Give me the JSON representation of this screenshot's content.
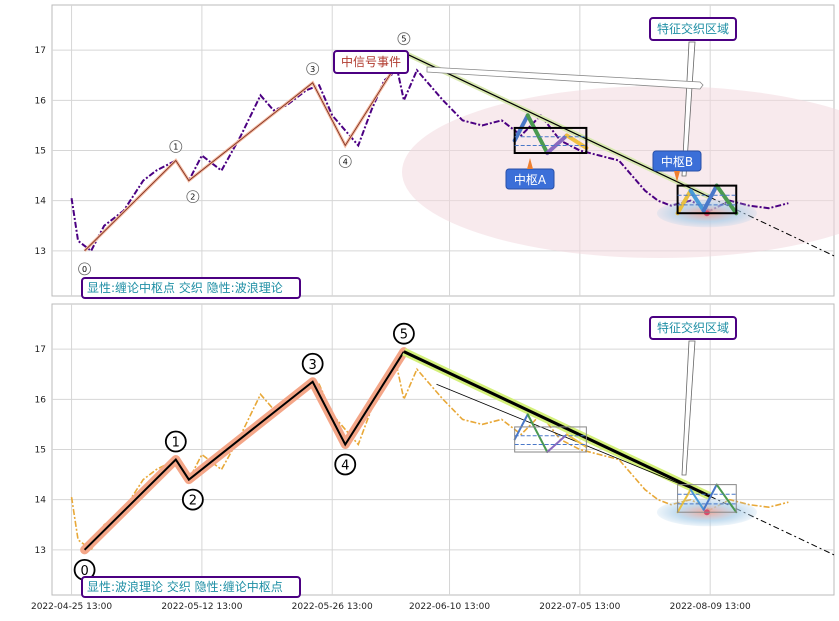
{
  "x_ticks": [
    "2022-04-25 13:00",
    "2022-05-12 13:00",
    "2022-05-26 13:00",
    "2022-06-10 13:00",
    "2022-07-05 13:00",
    "2022-08-09 13:00"
  ],
  "y_ticks": [
    "13",
    "14",
    "15",
    "16",
    "17"
  ],
  "colors": {
    "price_top": "#4b0082",
    "price_bottom": "#e8a838",
    "trend_line": "#000000",
    "wave_fill": "#f4a688",
    "zone_fill": "#f2d9df",
    "center_box_label_bg": "#3b6fd8",
    "annotation_border": "#4b0082",
    "annotation_text_teal": "#1f8fa5",
    "annotation_text_red": "#b03a2e"
  },
  "panels": [
    {
      "name": "top",
      "legend_label": "显性:缠论中枢点 交织 隐性:波浪理论",
      "feature_zone_label": "特征交织区域",
      "mid_signal_label": "中信号事件",
      "center_a_label": "中枢A",
      "center_b_label": "中枢B",
      "wave_labels": [
        "0",
        "1",
        "2",
        "3",
        "4",
        "5"
      ]
    },
    {
      "name": "bottom",
      "legend_label": "显性:波浪理论 交织 隐性:缠论中枢点",
      "feature_zone_label": "特征交织区域",
      "wave_labels": [
        "0",
        "1",
        "2",
        "3",
        "4",
        "5"
      ]
    }
  ],
  "chart_data": [
    {
      "type": "line",
      "title": "",
      "xlabel": "",
      "ylabel": "",
      "ylim": [
        12.1,
        17.9
      ],
      "x": [
        "2022-04-25 13:00",
        "2022-05-12 13:00",
        "2022-05-26 13:00",
        "2022-06-10 13:00",
        "2022-07-05 13:00",
        "2022-08-09 13:00"
      ],
      "series": [
        {
          "values_xy": [
            [
              0,
              14.05
            ],
            [
              1,
              13.2
            ],
            [
              3,
              13.0
            ],
            [
              5,
              13.5
            ],
            [
              8,
              13.8
            ],
            [
              11,
              14.4
            ],
            [
              13,
              14.6
            ],
            [
              16,
              14.8
            ],
            [
              18,
              14.4
            ],
            [
              20,
              14.9
            ],
            [
              23,
              14.6
            ],
            [
              26,
              15.3
            ],
            [
              29,
              16.1
            ],
            [
              31,
              15.8
            ],
            [
              33,
              15.9
            ],
            [
              36,
              16.2
            ],
            [
              38,
              16.3
            ],
            [
              40,
              15.7
            ],
            [
              42,
              15.4
            ],
            [
              44,
              15.1
            ],
            [
              46,
              15.8
            ],
            [
              48,
              16.4
            ],
            [
              50,
              16.6
            ],
            [
              51,
              16.0
            ],
            [
              53,
              16.6
            ],
            [
              55,
              16.3
            ],
            [
              57,
              16.0
            ],
            [
              60,
              15.6
            ],
            [
              63,
              15.5
            ],
            [
              66,
              15.6
            ],
            [
              69,
              15.3
            ],
            [
              72,
              15.7
            ],
            [
              75,
              15.2
            ],
            [
              78,
              15.0
            ],
            [
              81,
              14.9
            ],
            [
              84,
              14.8
            ],
            [
              86,
              14.5
            ],
            [
              88,
              14.2
            ],
            [
              90,
              14.0
            ],
            [
              92,
              13.9
            ],
            [
              95,
              14.0
            ],
            [
              98,
              13.8
            ],
            [
              101,
              14.0
            ],
            [
              104,
              13.9
            ],
            [
              107,
              13.85
            ],
            [
              110,
              13.95
            ]
          ]
        }
      ],
      "waves": {
        "points": [
          [
            2,
            13.0
          ],
          [
            16,
            14.8
          ],
          [
            18,
            14.4
          ],
          [
            37,
            16.35
          ],
          [
            42,
            15.1
          ],
          [
            51,
            16.95
          ]
        ],
        "labels": [
          "0",
          "1",
          "2",
          "3",
          "4",
          "5"
        ]
      },
      "centers": [
        {
          "label": "中枢A",
          "x_range": [
            68,
            79
          ],
          "y_range": [
            14.95,
            15.45
          ]
        },
        {
          "label": "中枢B",
          "x_range": [
            93,
            102
          ],
          "y_range": [
            13.75,
            14.3
          ]
        }
      ],
      "trend_line": {
        "from": [
          51,
          16.95
        ],
        "to": [
          117,
          12.9
        ]
      },
      "legend": "bottom-left"
    },
    {
      "type": "line",
      "title": "",
      "xlabel": "",
      "ylabel": "",
      "ylim": [
        12.1,
        17.9
      ],
      "x": [
        "2022-04-25 13:00",
        "2022-05-12 13:00",
        "2022-05-26 13:00",
        "2022-06-10 13:00",
        "2022-07-05 13:00",
        "2022-08-09 13:00"
      ],
      "series": [
        {
          "values_xy": [
            [
              0,
              14.05
            ],
            [
              1,
              13.2
            ],
            [
              3,
              13.0
            ],
            [
              5,
              13.5
            ],
            [
              8,
              13.8
            ],
            [
              11,
              14.4
            ],
            [
              13,
              14.6
            ],
            [
              16,
              14.8
            ],
            [
              18,
              14.4
            ],
            [
              20,
              14.9
            ],
            [
              23,
              14.6
            ],
            [
              26,
              15.3
            ],
            [
              29,
              16.1
            ],
            [
              31,
              15.8
            ],
            [
              33,
              15.9
            ],
            [
              36,
              16.2
            ],
            [
              38,
              16.3
            ],
            [
              40,
              15.7
            ],
            [
              42,
              15.4
            ],
            [
              44,
              15.1
            ],
            [
              46,
              15.8
            ],
            [
              48,
              16.4
            ],
            [
              50,
              16.6
            ],
            [
              51,
              16.0
            ],
            [
              53,
              16.6
            ],
            [
              55,
              16.3
            ],
            [
              57,
              16.0
            ],
            [
              60,
              15.6
            ],
            [
              63,
              15.5
            ],
            [
              66,
              15.6
            ],
            [
              69,
              15.3
            ],
            [
              72,
              15.7
            ],
            [
              75,
              15.2
            ],
            [
              78,
              15.0
            ],
            [
              81,
              14.9
            ],
            [
              84,
              14.8
            ],
            [
              86,
              14.5
            ],
            [
              88,
              14.2
            ],
            [
              90,
              14.0
            ],
            [
              92,
              13.9
            ],
            [
              95,
              14.0
            ],
            [
              98,
              13.8
            ],
            [
              101,
              14.0
            ],
            [
              104,
              13.9
            ],
            [
              107,
              13.85
            ],
            [
              110,
              13.95
            ]
          ]
        }
      ],
      "waves": {
        "points": [
          [
            2,
            13.0
          ],
          [
            16,
            14.8
          ],
          [
            18,
            14.4
          ],
          [
            37,
            16.35
          ],
          [
            42,
            15.1
          ],
          [
            51,
            16.95
          ]
        ],
        "labels": [
          "0",
          "1",
          "2",
          "3",
          "4",
          "5"
        ]
      },
      "centers": [
        {
          "x_range": [
            68,
            79
          ],
          "y_range": [
            14.95,
            15.45
          ]
        },
        {
          "x_range": [
            93,
            102
          ],
          "y_range": [
            13.75,
            14.3
          ]
        }
      ],
      "trend_line": {
        "from": [
          51,
          16.95
        ],
        "to": [
          117,
          12.9
        ]
      },
      "legend": "bottom-left"
    }
  ]
}
